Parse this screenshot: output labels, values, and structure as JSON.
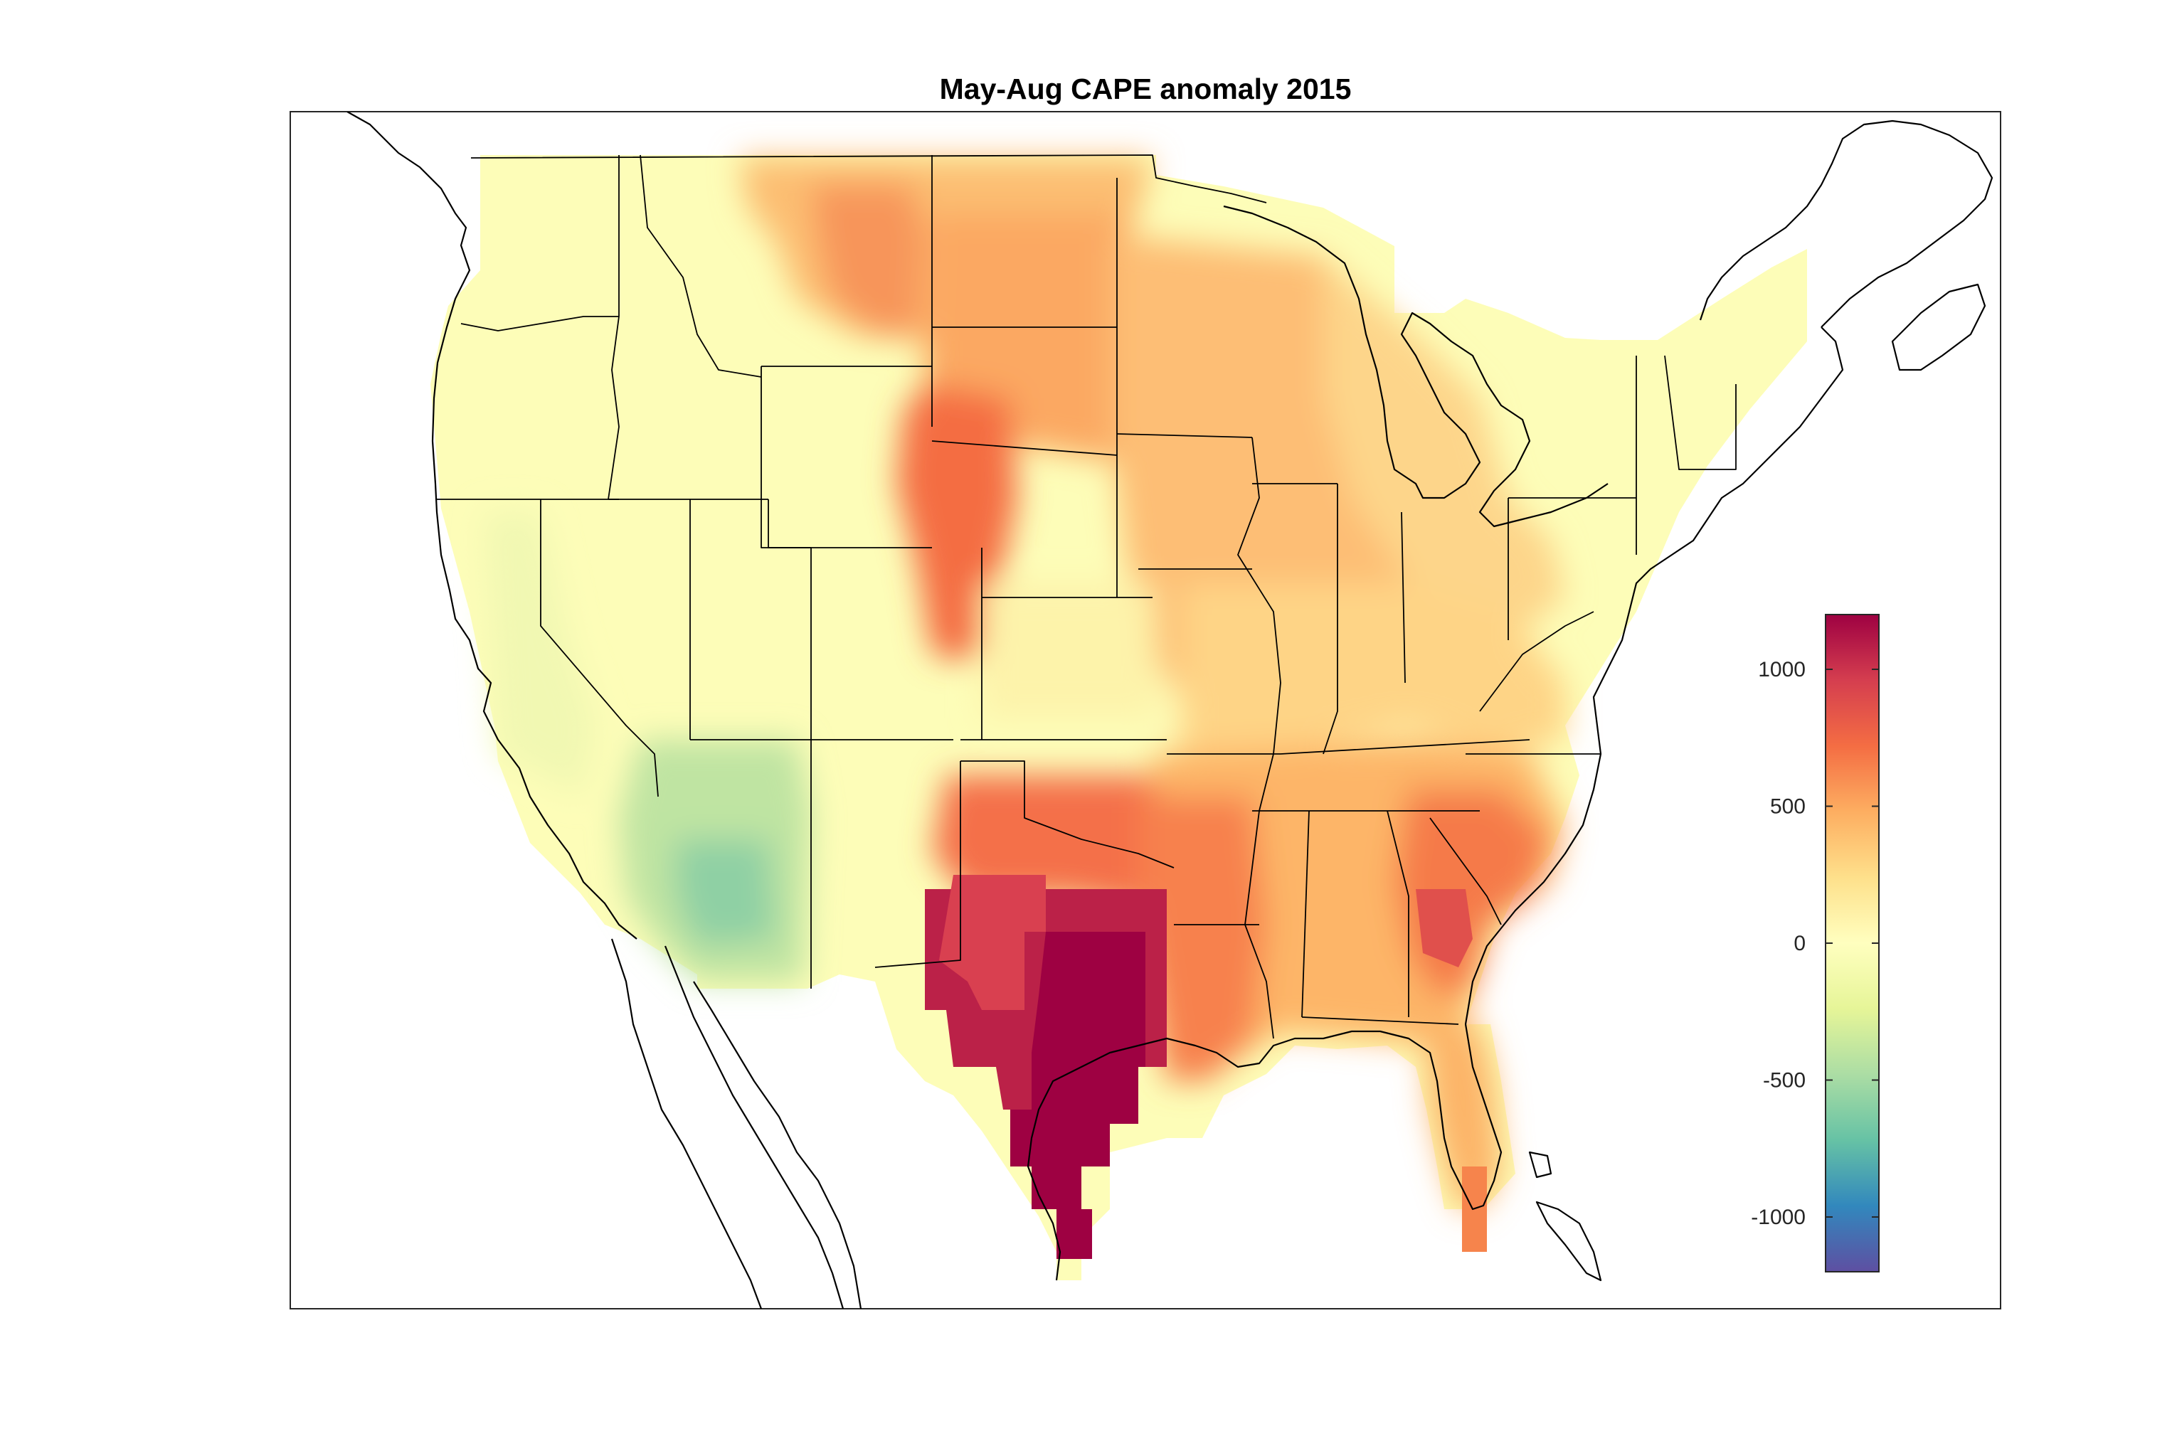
{
  "title": "May-Aug CAPE anomaly 2015",
  "colorbar": {
    "min": -1200,
    "max": 1200,
    "colormap": "spectral-reversed",
    "ticks": [
      {
        "value": 1000,
        "label": "1000"
      },
      {
        "value": 500,
        "label": "500"
      },
      {
        "value": 0,
        "label": "0"
      },
      {
        "value": -500,
        "label": "-500"
      },
      {
        "value": -1000,
        "label": "-1000"
      }
    ],
    "stops": [
      "#5e4fa2",
      "#3288bd",
      "#66c2a5",
      "#abdda4",
      "#e6f598",
      "#ffffbf",
      "#fee08b",
      "#fdae61",
      "#f46d43",
      "#d53e4f",
      "#9e0142"
    ]
  },
  "region": "Contiguous United States",
  "chart_data": {
    "type": "heatmap",
    "variable": "CAPE anomaly",
    "period": "May-Aug 2015",
    "clim": [
      -1200,
      1200
    ],
    "regions": [
      {
        "name": "Pacific Northwest",
        "value": 50
      },
      {
        "name": "California / Great Basin",
        "value": 0
      },
      {
        "name": "Arizona / SW New Mexico",
        "value": -450
      },
      {
        "name": "Montana east / Wyoming",
        "value": 500
      },
      {
        "name": "Dakotas",
        "value": 450
      },
      {
        "name": "Nebraska / E Colorado",
        "value": 600
      },
      {
        "name": "Kansas",
        "value": 100
      },
      {
        "name": "Oklahoma",
        "value": 700
      },
      {
        "name": "Texas",
        "value": 1200
      },
      {
        "name": "Louisiana / Arkansas",
        "value": 650
      },
      {
        "name": "Upper Midwest",
        "value": 300
      },
      {
        "name": "Ohio Valley",
        "value": 250
      },
      {
        "name": "Southeast",
        "value": 350
      },
      {
        "name": "Georgia / Carolinas",
        "value": 700
      },
      {
        "name": "Florida",
        "value": 400
      },
      {
        "name": "Northeast",
        "value": 50
      }
    ]
  }
}
